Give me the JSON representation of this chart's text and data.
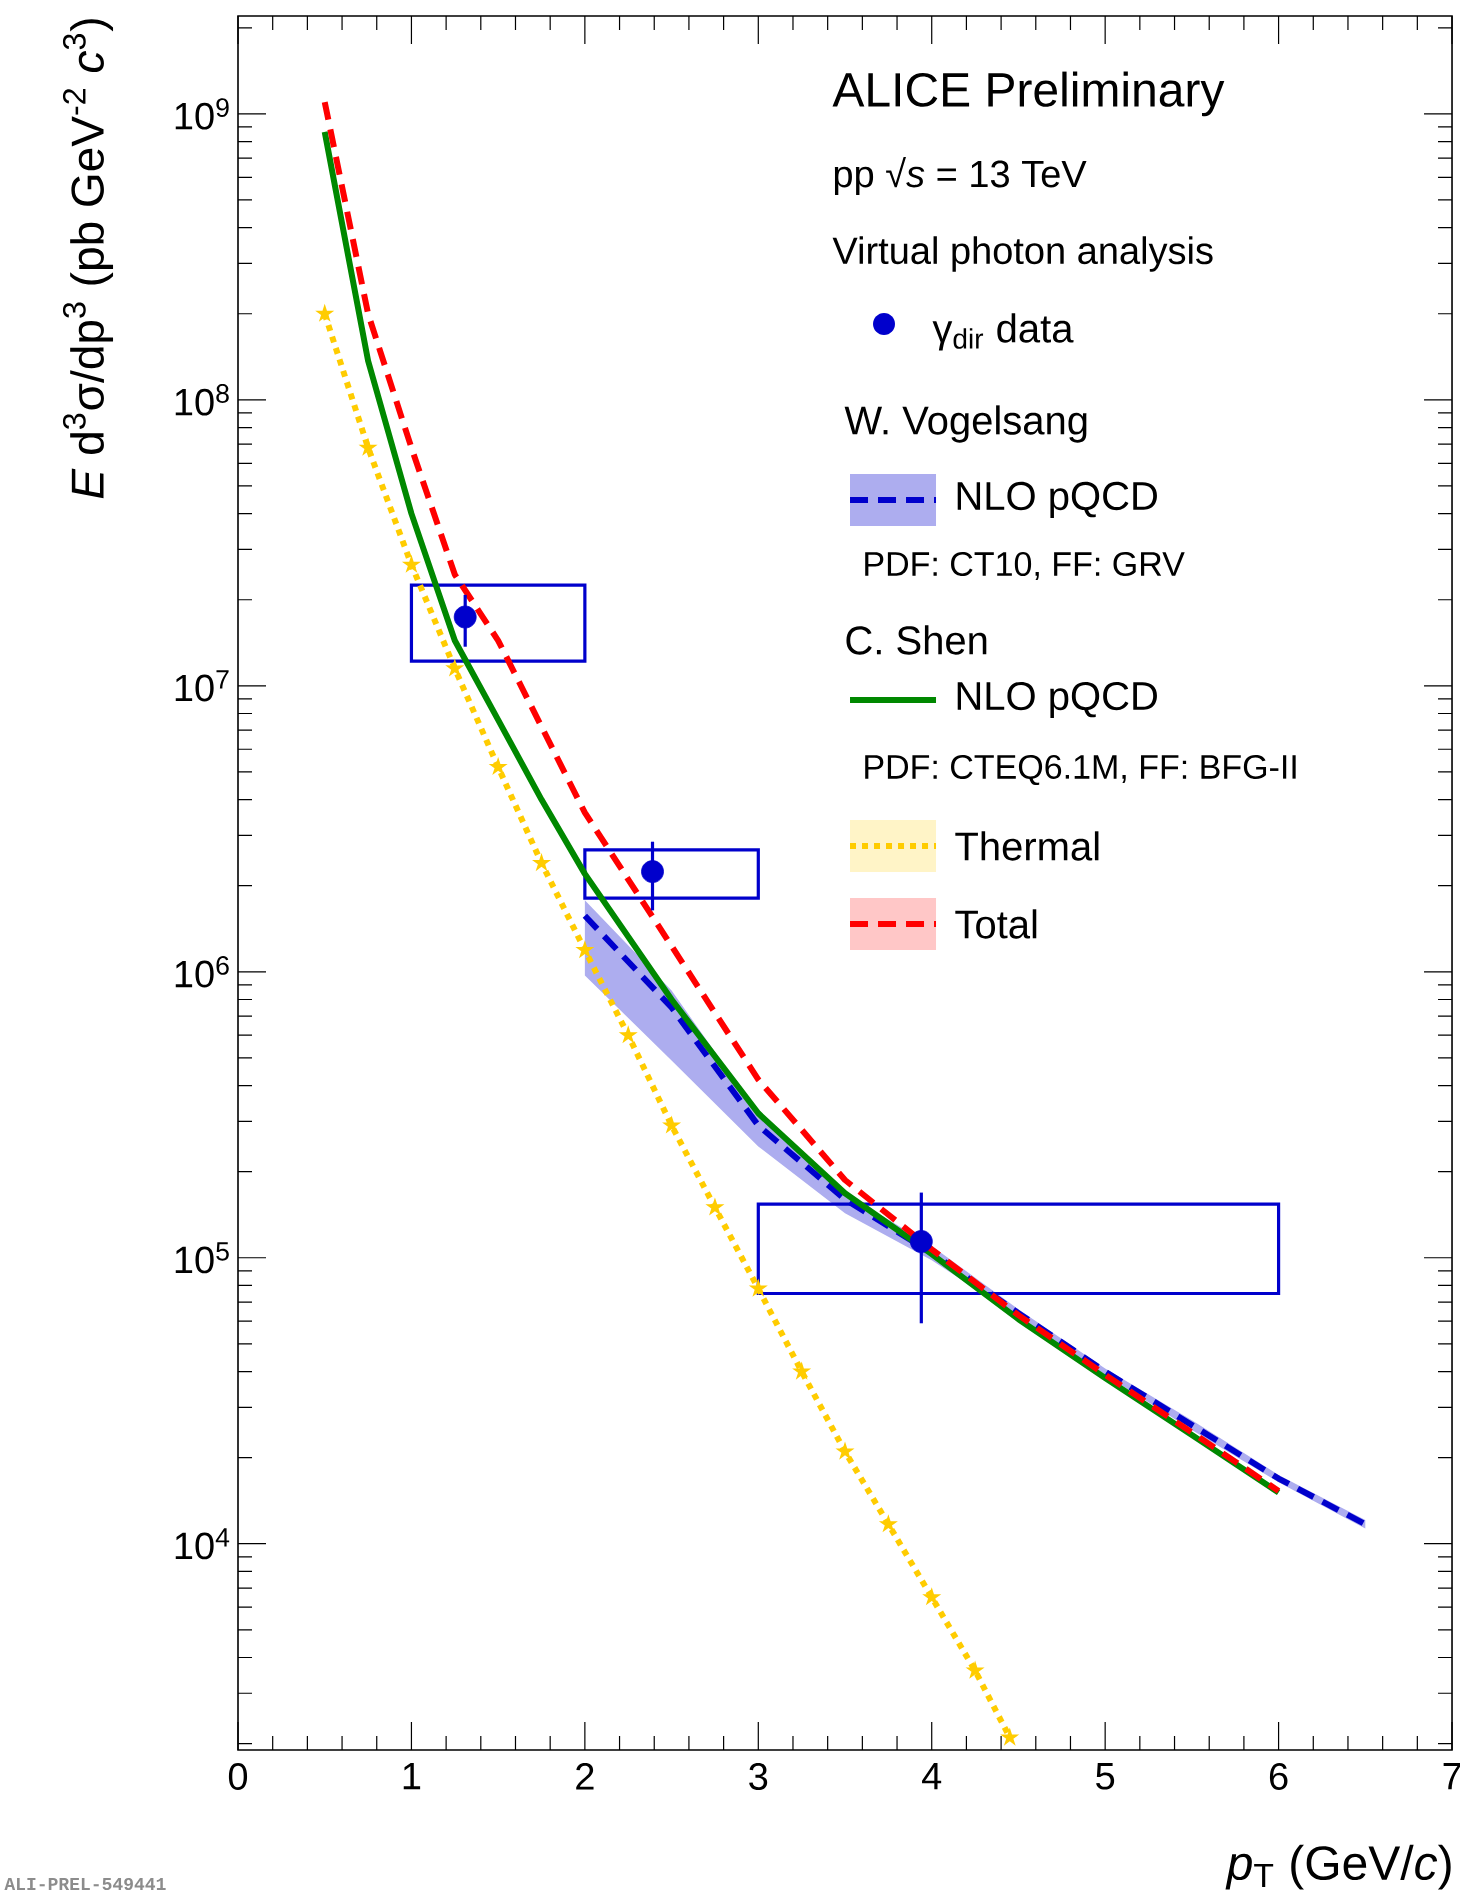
{
  "chart_data": {
    "type": "line",
    "title": "ALICE Preliminary",
    "subtitle": "pp √*s* = 13 TeV",
    "xlabel": "*p*$_{T}$ (GeV/*c*)",
    "ylabel": "*E* d$^{3}$σ/dp$^{3}$ (pb GeV$^{-2}$ *c*$^{3}$)",
    "annotations": [
      "Virtual photon analysis",
      "W. Vogelsang",
      "PDF: CT10, FF: GRV",
      "C. Shen",
      "PDF: CTEQ6.1M, FF: BFG-II",
      "ALI-PREL-549441"
    ],
    "xlim": [
      0,
      7
    ],
    "ylim": [
      1900,
      2200000000.0
    ],
    "log": "y",
    "xticks": [
      0,
      1,
      2,
      3,
      4,
      5,
      6,
      7
    ],
    "yticks": [
      {
        "value": 10000,
        "label": "10$^{4}$"
      },
      {
        "value": 100000,
        "label": "10$^{5}$"
      },
      {
        "value": 1000000,
        "label": "10$^{6}$"
      },
      {
        "value": 10000000,
        "label": "10$^{7}$"
      },
      {
        "value": 100000000,
        "label": "10$^{8}$"
      },
      {
        "value": 1000000000,
        "label": "10$^{9}$"
      }
    ],
    "legend": "top right",
    "series": [
      {
        "name": "γ$_{dir}$ data",
        "type": "scatter",
        "color": "#0000cc",
        "marker": "circle",
        "x": [
          1.31,
          2.39,
          3.94
        ],
        "values": [
          17400000.0,
          2240000.0,
          114000.0
        ],
        "errors": [
          [
            13700000.0,
            20800000.0
          ],
          [
            1640000.0,
            2850000.0
          ],
          [
            59000.0,
            169000.0
          ]
        ]
      },
      {
        "type": "histogram",
        "color": "#0000cc",
        "bins": [
          1,
          2,
          3,
          6
        ],
        "base": [
          12200000.0,
          1810000.0,
          75000.0
        ],
        "values": [
          10300000.0,
          860000.0,
          79000.0
        ]
      },
      {
        "name": "NLO pQCD",
        "color": "#0000cc",
        "line_style": "dashed",
        "x": [
          2,
          2.5,
          3,
          3.5,
          4,
          4.5,
          5,
          5.5,
          6,
          6.5
        ],
        "values": [
          1570000.0,
          750000.0,
          290000.0,
          160000.0,
          104000.0,
          64000.0,
          40000.0,
          26000.0,
          16900.0,
          11700.0
        ],
        "lower": [
          970000.0,
          490000.0,
          245000.0,
          143000.0,
          98000.0,
          62000.0,
          39000.0,
          25000.0,
          16400.0,
          11300.0
        ],
        "upper": [
          1780000.0,
          860000.0,
          320000.0,
          168000.0,
          110000.0,
          66000.0,
          41000.0,
          27000.0,
          17400.0,
          12100.0
        ]
      },
      {
        "name": "NLO pQCD",
        "color": "#008800",
        "line_style": "solid",
        "x": [
          0.5,
          0.75,
          1,
          1.25,
          1.5,
          1.75,
          2,
          2.5,
          3,
          3.5,
          4,
          4.5,
          5,
          5.5,
          6
        ],
        "values": [
          865000000.0,
          137000000.0,
          40000000.0,
          14400000.0,
          7600000.0,
          4000000.0,
          2200000.0,
          800000.0,
          320000.0,
          168000.0,
          103000.0,
          61000.0,
          38000.0,
          24000.0,
          15100.0
        ]
      },
      {
        "name": "Thermal",
        "color": "#ffcc00",
        "line_style": "dotted",
        "marker": "star",
        "x": [
          0.5,
          0.75,
          1,
          1.25,
          1.5,
          1.75,
          2,
          2.25,
          2.5,
          2.75,
          3,
          3.25,
          3.5,
          3.75,
          4,
          4.25,
          4.45
        ],
        "values": [
          200000000.0,
          68000000.0,
          26500000.0,
          11500000.0,
          5200000.0,
          2400000.0,
          1190000.0,
          600000.0,
          290000.0,
          150000.0,
          78000.0,
          40000.0,
          21000.0,
          11700.0,
          6500.0,
          3600.0,
          2100.0
        ]
      },
      {
        "name": "Total",
        "color": "#ff0000",
        "line_style": "dashed",
        "x": [
          0.5,
          0.75,
          1,
          1.25,
          1.5,
          1.75,
          2,
          2.5,
          3,
          3.5,
          4,
          4.5,
          5,
          5.5,
          6
        ],
        "values": [
          1100000000.0,
          200000000.0,
          68000000.0,
          24500000.0,
          14400000.0,
          7200000.0,
          3600000.0,
          1230000.0,
          420000.0,
          187000.0,
          107000.0,
          63000.0,
          39000.0,
          24500.0,
          15300.0
        ]
      }
    ]
  }
}
